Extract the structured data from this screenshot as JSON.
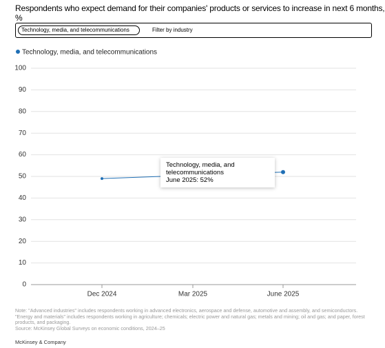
{
  "chart_data": {
    "type": "line",
    "title": "Respondents who expect demand for their companies' products or services to increase in next 6 months, %",
    "filter": {
      "selected": "Technology, media, and telecommunications",
      "label": "Filter by industry"
    },
    "xticks": [
      "Dec 2024",
      "Mar 2025",
      "June 2025"
    ],
    "x": [
      "Dec 2024",
      "June 2025"
    ],
    "series": [
      {
        "name": "Technology, media, and telecommunications",
        "color": "#1f6fb5",
        "values": [
          49,
          52
        ]
      }
    ],
    "ylim": [
      0,
      100
    ],
    "yticks": [
      0,
      10,
      20,
      30,
      40,
      50,
      60,
      70,
      80,
      90,
      100
    ],
    "grid": true,
    "tooltip": {
      "title": "Technology, media, and telecommunications",
      "label": "June 2025: 52%"
    },
    "notes": [
      "Note: \"Advanced industries\" includes respondents working in advanced electronics, aerospace and defense, automotive and assembly, and semiconductors. \"Energy and materials\" includes respondents working in agriculture; chemicals; electric power and natural gas; metals and mining; oil and gas; and paper, forest products, and packaging.",
      "Source: McKinsey Global Surveys on economic conditions, 2024–25"
    ],
    "footer": "McKinsey & Company"
  }
}
